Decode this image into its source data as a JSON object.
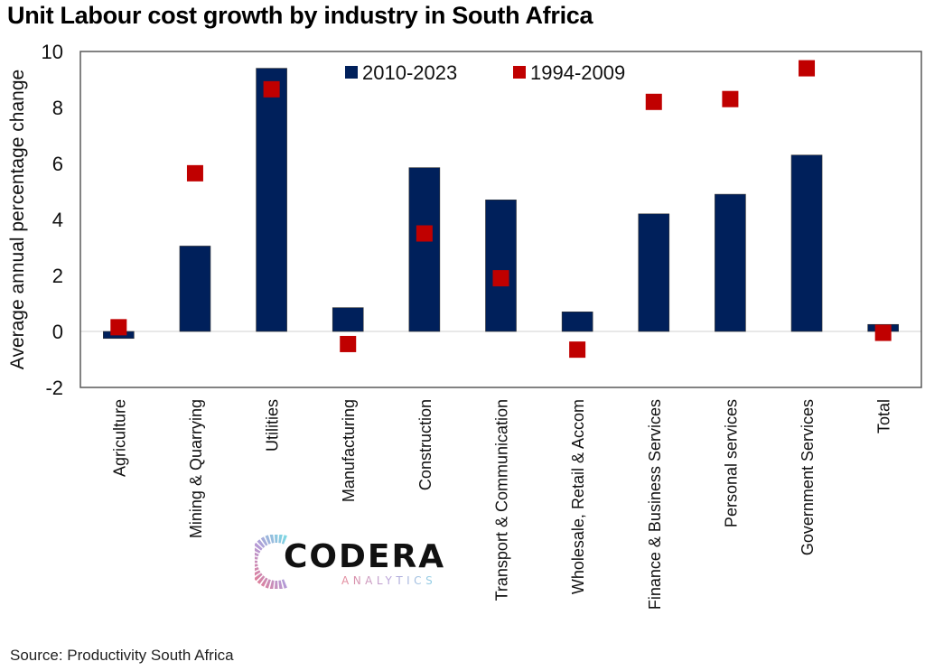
{
  "title": "Unit Labour cost growth by industry in South Africa",
  "source": "Source: Productivity South Africa",
  "logo": {
    "name": "CODERA",
    "subtitle": "ANALYTICS"
  },
  "colors": {
    "bar": "#00205b",
    "marker": "#c00000",
    "axis": "#555555",
    "zero_line": "#d9d9d9"
  },
  "chart_data": {
    "type": "bar",
    "title": "Unit Labour cost growth by industry in South Africa",
    "xlabel": "",
    "ylabel": "Average annual percentage change",
    "ylim": [
      -2,
      10
    ],
    "yticks": [
      -2,
      0,
      2,
      4,
      6,
      8,
      10
    ],
    "grid": false,
    "legend_position": "top",
    "categories": [
      "Agriculture",
      "Mining & Quarrying",
      "Utilities",
      "Manufacturing",
      "Construction",
      "Transport & Communication",
      "Wholesale, Retail & Accom",
      "Finance & Business Services",
      "Personal services",
      "Government Services",
      "Total"
    ],
    "series": [
      {
        "name": "2010-2023",
        "kind": "bar",
        "values": [
          -0.25,
          3.05,
          9.4,
          0.85,
          5.85,
          4.7,
          0.7,
          4.2,
          4.9,
          6.3,
          0.25
        ]
      },
      {
        "name": "1994-2009",
        "kind": "marker",
        "values": [
          0.15,
          5.65,
          8.65,
          -0.45,
          3.5,
          1.9,
          -0.65,
          8.2,
          8.3,
          9.4,
          -0.05
        ]
      }
    ]
  }
}
